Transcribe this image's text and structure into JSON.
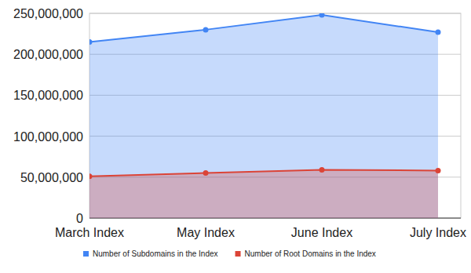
{
  "chart_data": {
    "type": "area",
    "categories": [
      "March Index",
      "May Index",
      "June Index",
      "July Index"
    ],
    "series": [
      {
        "name": "Number of Subdomains in the Index",
        "color": "#4285f4",
        "values": [
          215000000,
          230000000,
          248000000,
          227000000
        ]
      },
      {
        "name": "Number of Root Domains in the Index",
        "color": "#db4437",
        "values": [
          51000000,
          55000000,
          59000000,
          58000000
        ]
      }
    ],
    "ylim": [
      0,
      250000000
    ],
    "yticks": [
      0,
      {
        "value": 50000000,
        "label": "50,000,000"
      },
      {
        "value": 100000000,
        "label": "100,000,000"
      },
      {
        "value": 150000000,
        "label": "150,000,000"
      },
      {
        "value": 200000000,
        "label": "200,000,000"
      },
      {
        "value": 250000000,
        "label": "250,000,000"
      }
    ],
    "grid": true,
    "legend": "bottom",
    "marker": "circle"
  }
}
